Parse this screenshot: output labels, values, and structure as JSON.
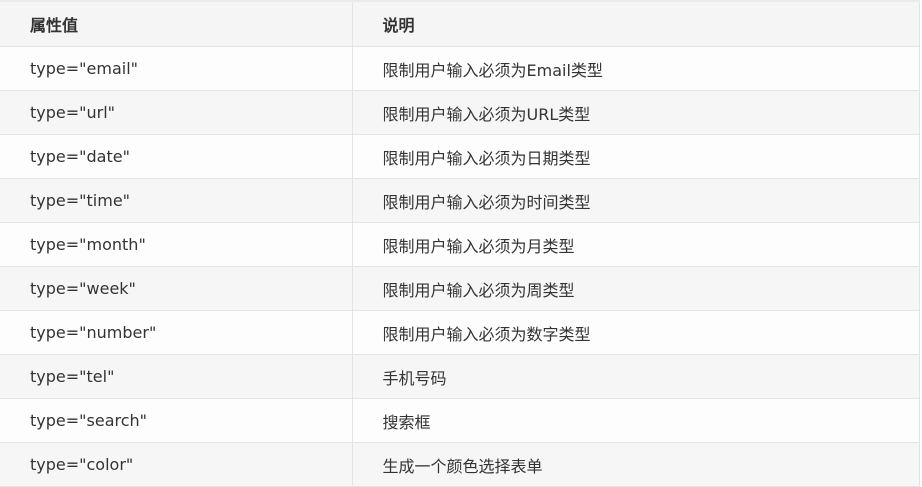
{
  "table": {
    "headers": [
      "属性值",
      "说明"
    ],
    "rows": [
      [
        "type=\"email\"",
        "限制用户输入必须为Email类型"
      ],
      [
        "type=\"url\"",
        "限制用户输入必须为URL类型"
      ],
      [
        "type=\"date\"",
        "限制用户输入必须为日期类型"
      ],
      [
        "type=\"time\"",
        "限制用户输入必须为时间类型"
      ],
      [
        "type=\"month\"",
        "限制用户输入必须为月类型"
      ],
      [
        "type=\"week\"",
        "限制用户输入必须为周类型"
      ],
      [
        "type=\"number\"",
        "限制用户输入必须为数字类型"
      ],
      [
        "type=\"tel\"",
        "手机号码"
      ],
      [
        "type=\"search\"",
        "搜索框"
      ],
      [
        "type=\"color\"",
        "生成一个颜色选择表单"
      ]
    ]
  }
}
